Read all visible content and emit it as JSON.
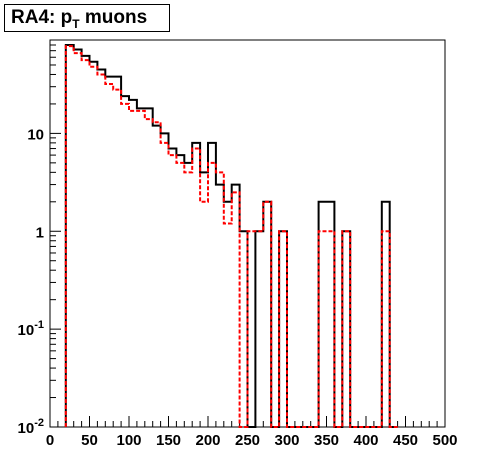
{
  "chart_data": {
    "type": "line",
    "title": "RA4: p",
    "title_subscript": "T",
    "title_suffix": " muons",
    "xlabel": "",
    "ylabel": "",
    "xlim": [
      0,
      500
    ],
    "ylim": [
      0.01,
      90
    ],
    "y_scale": "log",
    "grid": false,
    "bin_width": 10,
    "x_ticks": [
      0,
      50,
      100,
      150,
      200,
      250,
      300,
      350,
      400,
      450,
      500
    ],
    "x_tick_labels": [
      "0",
      "50",
      "100",
      "150",
      "200",
      "250",
      "300",
      "350",
      "400",
      "450",
      "500"
    ],
    "y_tick_labels": [
      {
        "value": 10,
        "base": "10",
        "exp": ""
      },
      {
        "value": 1,
        "base": "1",
        "exp": ""
      },
      {
        "value": 0.1,
        "base": "10",
        "exp": "-1"
      },
      {
        "value": 0.01,
        "base": "10",
        "exp": "-2"
      }
    ],
    "series": [
      {
        "color": "#000000",
        "style": "solid",
        "bins": [
          [
            20,
            80
          ],
          [
            30,
            72
          ],
          [
            40,
            62
          ],
          [
            50,
            54
          ],
          [
            60,
            45
          ],
          [
            70,
            38
          ],
          [
            80,
            38
          ],
          [
            90,
            24
          ],
          [
            100,
            22
          ],
          [
            110,
            18
          ],
          [
            120,
            18
          ],
          [
            130,
            12
          ],
          [
            140,
            10
          ],
          [
            150,
            7
          ],
          [
            160,
            6
          ],
          [
            170,
            5
          ],
          [
            180,
            8
          ],
          [
            190,
            4
          ],
          [
            200,
            8
          ],
          [
            210,
            3
          ],
          [
            220,
            2
          ],
          [
            230,
            3
          ],
          [
            240,
            1
          ],
          [
            250,
            0.01
          ],
          [
            260,
            1
          ],
          [
            270,
            2
          ],
          [
            280,
            0.01
          ],
          [
            290,
            1
          ],
          [
            300,
            0.01
          ],
          [
            310,
            0.01
          ],
          [
            320,
            0.01
          ],
          [
            330,
            0.01
          ],
          [
            340,
            2
          ],
          [
            350,
            2
          ],
          [
            360,
            0.01
          ],
          [
            370,
            1
          ],
          [
            380,
            0.01
          ],
          [
            390,
            0.01
          ],
          [
            400,
            0.01
          ],
          [
            410,
            0.01
          ],
          [
            420,
            2
          ],
          [
            430,
            0.01
          ]
        ]
      },
      {
        "color": "#ff0000",
        "style": "dashed",
        "bins": [
          [
            20,
            78
          ],
          [
            30,
            66
          ],
          [
            40,
            56
          ],
          [
            50,
            48
          ],
          [
            60,
            40
          ],
          [
            70,
            32
          ],
          [
            80,
            28
          ],
          [
            90,
            20
          ],
          [
            100,
            17
          ],
          [
            110,
            17
          ],
          [
            120,
            14
          ],
          [
            130,
            13
          ],
          [
            140,
            8
          ],
          [
            150,
            6
          ],
          [
            160,
            5
          ],
          [
            170,
            4
          ],
          [
            180,
            7
          ],
          [
            190,
            2
          ],
          [
            200,
            5
          ],
          [
            210,
            4
          ],
          [
            220,
            1.2
          ],
          [
            230,
            2.5
          ],
          [
            240,
            0.01
          ],
          [
            250,
            1
          ],
          [
            260,
            1
          ],
          [
            270,
            2
          ],
          [
            280,
            0.01
          ],
          [
            290,
            1
          ],
          [
            300,
            0.01
          ],
          [
            310,
            0.01
          ],
          [
            320,
            0.01
          ],
          [
            330,
            0.01
          ],
          [
            340,
            1
          ],
          [
            350,
            1
          ],
          [
            360,
            0.01
          ],
          [
            370,
            1
          ],
          [
            380,
            0.01
          ],
          [
            390,
            0.01
          ],
          [
            400,
            0.01
          ],
          [
            410,
            0.01
          ],
          [
            420,
            1
          ],
          [
            430,
            0.01
          ]
        ]
      }
    ]
  }
}
